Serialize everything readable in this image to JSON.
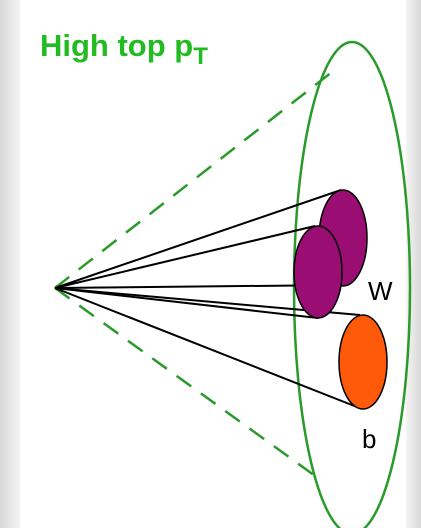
{
  "title": {
    "text": "High top p",
    "subscript": "T"
  },
  "labels": {
    "w": "W",
    "b": "b"
  }
}
